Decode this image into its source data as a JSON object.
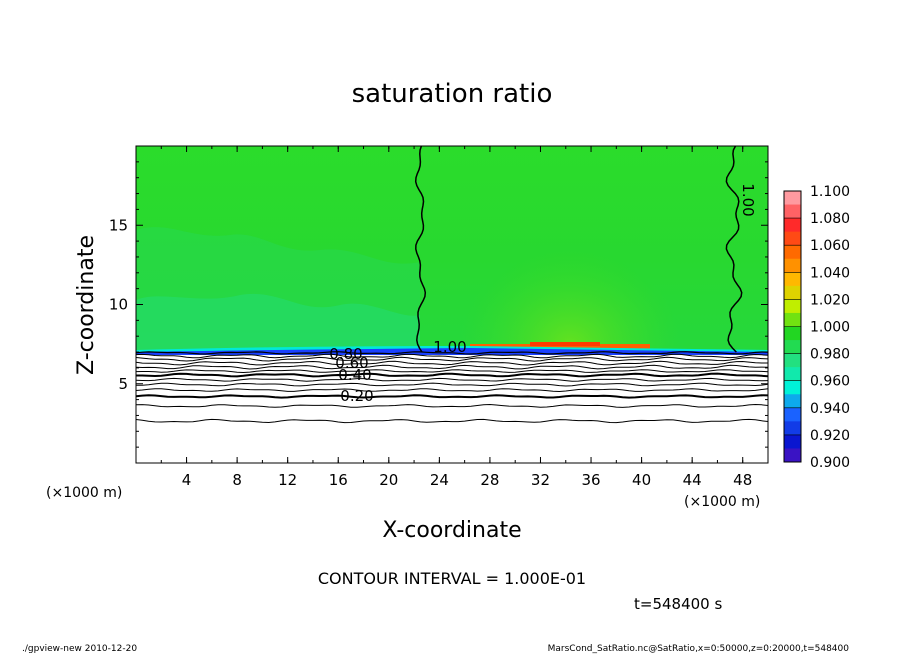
{
  "chart_data": {
    "type": "heatmap",
    "title": "saturation ratio",
    "xlabel": "X-coordinate",
    "ylabel": "Z-coordinate",
    "x_unit_label": "(×1000 m)",
    "x_unit_label_right": "(×1000 m)",
    "xlim": [
      0,
      50
    ],
    "ylim": [
      0,
      20
    ],
    "x_ticks": [
      4,
      8,
      12,
      16,
      20,
      24,
      28,
      32,
      36,
      40,
      44,
      48
    ],
    "y_ticks": [
      5,
      10,
      15
    ],
    "colorbar": {
      "levels": [
        "1.100",
        "1.080",
        "1.060",
        "1.040",
        "1.020",
        "1.000",
        "0.980",
        "0.960",
        "0.940",
        "0.920",
        "0.900"
      ],
      "colors": [
        "#ff9aa0",
        "#ff2a2a",
        "#ff6a00",
        "#ffb800",
        "#c0ee00",
        "#22d622",
        "#22e080",
        "#00f2d8",
        "#1a62ff",
        "#0a16d0",
        "#6a10b8"
      ]
    },
    "contours": [
      {
        "label": "1.00",
        "description": "vertical contour near x=22-23"
      },
      {
        "label": "1.00",
        "description": "vertical contour near x=47-48"
      },
      {
        "label": "1.00",
        "z": 7.0
      },
      {
        "label": "0.80",
        "z": 6.8
      },
      {
        "label": "0.60",
        "z": 6.4
      },
      {
        "label": "0.40",
        "z": 5.6
      },
      {
        "label": "0.20",
        "z": 4.2
      }
    ],
    "annotations": {
      "contour_interval": "CONTOUR INTERVAL = 1.000E-01",
      "time": "t=548400 s",
      "footer_left": "./gpview-new  2010-12-20",
      "footer_right": "MarsCond_SatRatio.nc@SatRatio,x=0:50000,z=0:20000,t=548400"
    }
  }
}
